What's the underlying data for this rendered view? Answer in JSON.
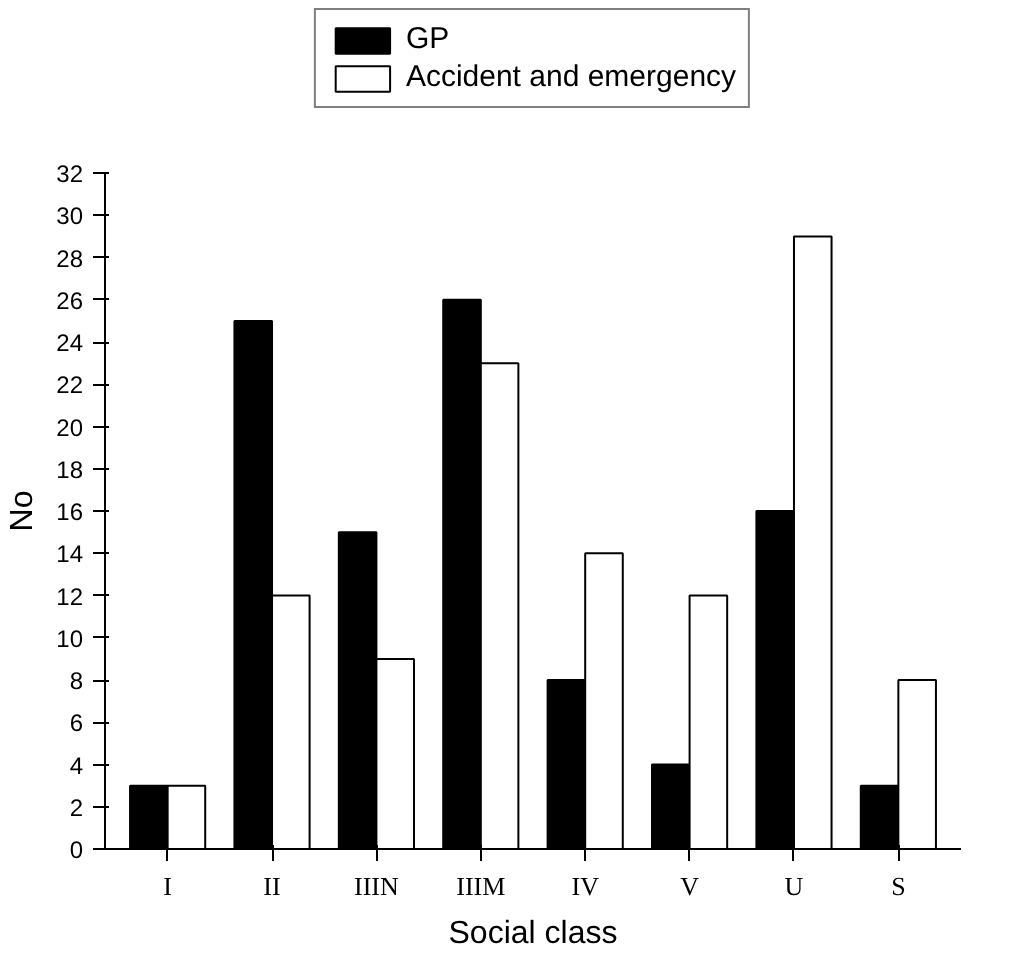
{
  "chart_data": {
    "type": "bar",
    "xlabel": "Social class",
    "ylabel": "No",
    "categories": [
      "I",
      "II",
      "IIIN",
      "IIIM",
      "IV",
      "V",
      "U",
      "S"
    ],
    "series": [
      {
        "name": "GP",
        "color": "#000000",
        "values": [
          3,
          25,
          15,
          26,
          8,
          4,
          16,
          3
        ]
      },
      {
        "name": "Accident and emergency",
        "color": "#ffffff",
        "values": [
          3,
          12,
          9,
          23,
          14,
          12,
          29,
          8
        ]
      }
    ],
    "ylim": [
      0,
      32
    ],
    "yticks": [
      0,
      2,
      4,
      6,
      8,
      10,
      12,
      14,
      16,
      18,
      20,
      22,
      24,
      26,
      28,
      30,
      32
    ],
    "grid": false,
    "legend": "top"
  }
}
